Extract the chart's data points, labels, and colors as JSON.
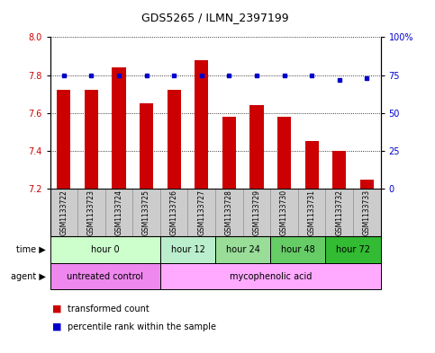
{
  "title": "GDS5265 / ILMN_2397199",
  "samples": [
    "GSM1133722",
    "GSM1133723",
    "GSM1133724",
    "GSM1133725",
    "GSM1133726",
    "GSM1133727",
    "GSM1133728",
    "GSM1133729",
    "GSM1133730",
    "GSM1133731",
    "GSM1133732",
    "GSM1133733"
  ],
  "bar_values": [
    7.72,
    7.72,
    7.84,
    7.65,
    7.72,
    7.88,
    7.58,
    7.64,
    7.58,
    7.45,
    7.4,
    7.25
  ],
  "dot_values": [
    75,
    75,
    75,
    75,
    75,
    75,
    75,
    75,
    75,
    75,
    72,
    73
  ],
  "ylim_left": [
    7.2,
    8.0
  ],
  "ylim_right": [
    0,
    100
  ],
  "yticks_left": [
    7.2,
    7.4,
    7.6,
    7.8,
    8.0
  ],
  "yticks_right": [
    0,
    25,
    50,
    75,
    100
  ],
  "bar_color": "#CC0000",
  "dot_color": "#0000CC",
  "bar_width": 0.5,
  "time_groups": [
    {
      "label": "hour 0",
      "start": 0,
      "end": 4,
      "color": "#ccffcc"
    },
    {
      "label": "hour 12",
      "start": 4,
      "end": 6,
      "color": "#bbeecc"
    },
    {
      "label": "hour 24",
      "start": 6,
      "end": 8,
      "color": "#99dd99"
    },
    {
      "label": "hour 48",
      "start": 8,
      "end": 10,
      "color": "#66cc66"
    },
    {
      "label": "hour 72",
      "start": 10,
      "end": 12,
      "color": "#33bb33"
    }
  ],
  "agent_groups": [
    {
      "label": "untreated control",
      "start": 0,
      "end": 4,
      "color": "#ee88ee"
    },
    {
      "label": "mycophenolic acid",
      "start": 4,
      "end": 12,
      "color": "#ffaaff"
    }
  ],
  "legend_bar_label": "transformed count",
  "legend_dot_label": "percentile rank within the sample",
  "sample_box_color": "#cccccc",
  "plot_bg": "#ffffff",
  "fig_bg": "#ffffff"
}
